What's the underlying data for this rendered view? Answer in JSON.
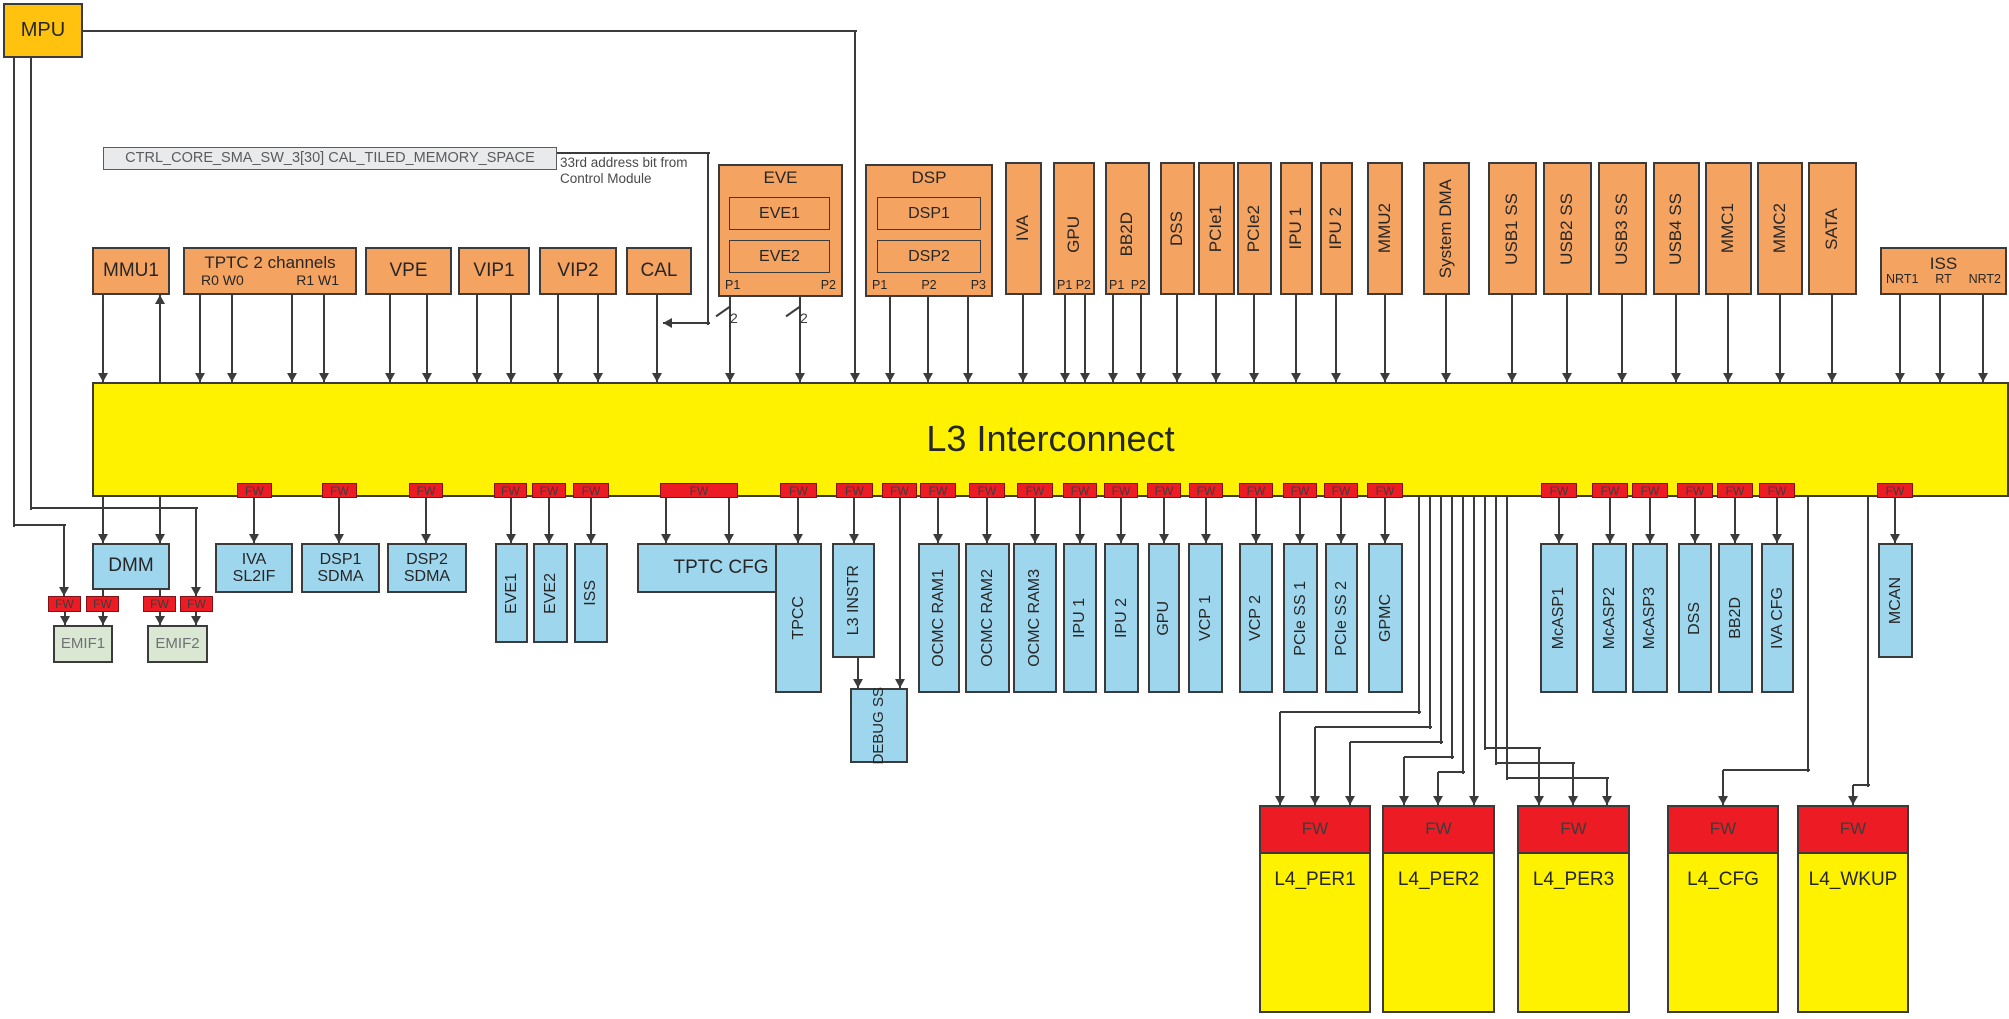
{
  "palette": {
    "gold": "#FFC20E",
    "orange": "#F4A361",
    "yellow": "#FEF200",
    "firewall_red": "#ED1C24",
    "blue": "#9ED6EE",
    "green": "#D9E7D3",
    "grey_label_fill": "#E9EAEB",
    "line": "#3b3b3b"
  },
  "fw": "FW",
  "bus_width": "2",
  "mpu": {
    "label": "MPU"
  },
  "l3": {
    "label": "L3 Interconnect"
  },
  "control": {
    "register": "CTRL_CORE_SMA_SW_3[30] CAL_TILED_MEMORY_SPACE",
    "note_line1": "33rd address bit from",
    "note_line2": "Control Module"
  },
  "initiators": {
    "mmu1": {
      "label": "MMU1"
    },
    "tptc": {
      "label": "TPTC 2 channels",
      "sub1": "R0 W0",
      "sub2": "R1 W1"
    },
    "vpe": {
      "label": "VPE"
    },
    "vip1": {
      "label": "VIP1"
    },
    "vip2": {
      "label": "VIP2"
    },
    "cal": {
      "label": "CAL"
    },
    "eve": {
      "title": "EVE",
      "sub1": "EVE1",
      "sub2": "EVE2",
      "ports": [
        "P1",
        "P2"
      ]
    },
    "dsp": {
      "title": "DSP",
      "sub1": "DSP1",
      "sub2": "DSP2",
      "ports": [
        "P1",
        "P2",
        "P3"
      ]
    },
    "iva": {
      "label": "IVA"
    },
    "gpu": {
      "label": "GPU",
      "ports": [
        "P1",
        "P2"
      ]
    },
    "bb2d": {
      "label": "BB2D",
      "ports": [
        "P1",
        "P2"
      ]
    },
    "dss": {
      "label": "DSS"
    },
    "pcie1": {
      "label": "PCIe1"
    },
    "pcie2": {
      "label": "PCIe2"
    },
    "ipu1": {
      "label": "IPU 1"
    },
    "ipu2": {
      "label": "IPU 2"
    },
    "mmu2": {
      "label": "MMU2"
    },
    "sysdma": {
      "label": "System DMA"
    },
    "usb1": {
      "label": "USB1 SS"
    },
    "usb2": {
      "label": "USB2 SS"
    },
    "usb3": {
      "label": "USB3 SS"
    },
    "usb4": {
      "label": "USB4 SS"
    },
    "mmc1": {
      "label": "MMC1"
    },
    "mmc2": {
      "label": "MMC2"
    },
    "sata": {
      "label": "SATA"
    },
    "iss": {
      "title": "ISS",
      "ports": [
        "NRT1",
        "RT",
        "NRT2"
      ]
    }
  },
  "targets": {
    "dmm": {
      "label": "DMM"
    },
    "emif1": {
      "label": "EMIF1"
    },
    "emif2": {
      "label": "EMIF2"
    },
    "iva_sl2if": {
      "line1": "IVA",
      "line2": "SL2IF"
    },
    "dsp1_sdma": {
      "line1": "DSP1",
      "line2": "SDMA"
    },
    "dsp2_sdma": {
      "line1": "DSP2",
      "line2": "SDMA"
    },
    "eve1": {
      "label": "EVE1"
    },
    "eve2": {
      "label": "EVE2"
    },
    "iss": {
      "label": "ISS"
    },
    "tptc_cfg": {
      "label": "TPTC CFG"
    },
    "tpcc": {
      "label": "TPCC"
    },
    "l3_instr": {
      "label": "L3 INSTR"
    },
    "debug_ss": {
      "label": "DEBUG SS"
    },
    "ocmc1": {
      "label": "OCMC RAM1"
    },
    "ocmc2": {
      "label": "OCMC RAM2"
    },
    "ocmc3": {
      "label": "OCMC RAM3"
    },
    "ipu1": {
      "label": "IPU 1"
    },
    "ipu2": {
      "label": "IPU 2"
    },
    "gpu": {
      "label": "GPU"
    },
    "vcp1": {
      "label": "VCP 1"
    },
    "vcp2": {
      "label": "VCP 2"
    },
    "pcie_ss1": {
      "label": "PCIe SS 1"
    },
    "pcie_ss2": {
      "label": "PCIe SS 2"
    },
    "gpmc": {
      "label": "GPMC"
    },
    "mcasp1": {
      "label": "McASP1"
    },
    "mcasp2": {
      "label": "McASP2"
    },
    "mcasp3": {
      "label": "McASP3"
    },
    "dss": {
      "label": "DSS"
    },
    "bb2d": {
      "label": "BB2D"
    },
    "iva_cfg": {
      "label": "IVA CFG"
    },
    "mcan": {
      "label": "MCAN"
    },
    "l4_per1": {
      "label": "L4_PER1"
    },
    "l4_per2": {
      "label": "L4_PER2"
    },
    "l4_per3": {
      "label": "L4_PER3"
    },
    "l4_cfg": {
      "label": "L4_CFG"
    },
    "l4_wkup": {
      "label": "L4_WKUP"
    }
  }
}
